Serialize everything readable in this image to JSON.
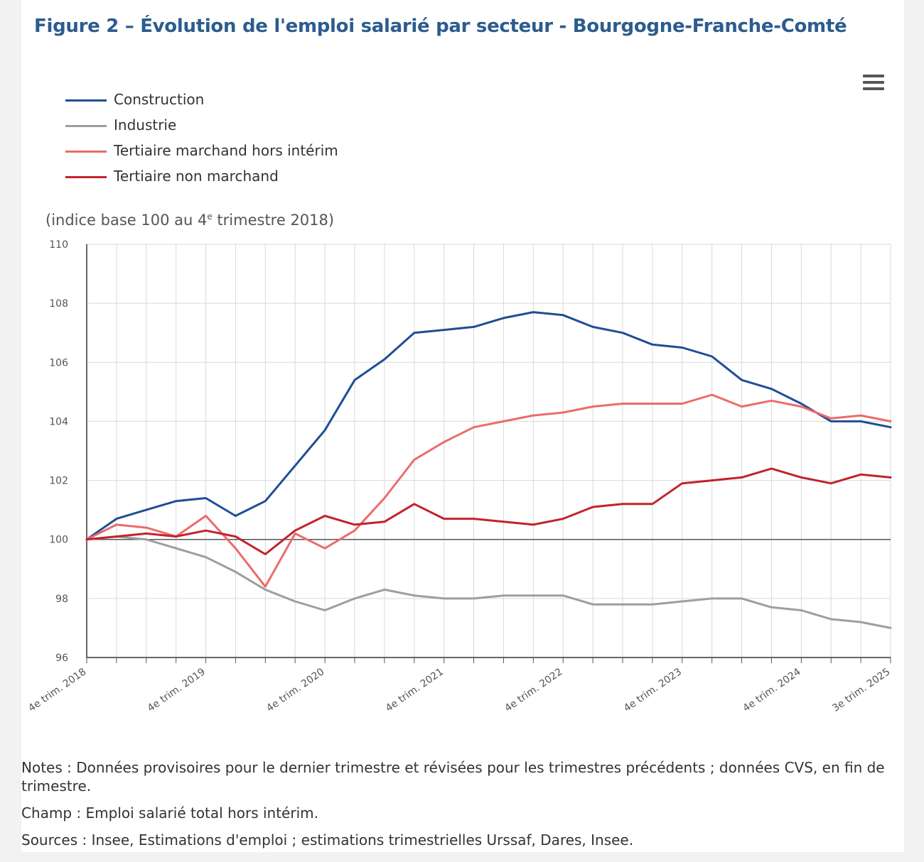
{
  "title": "Figure 2 – Évolution de l'emploi salarié par secteur - Bourgogne-Franche-Comté",
  "menu_icon": "hamburger-menu-icon",
  "unit_note": {
    "prefix": "(indice base 100 au 4",
    "sup": "e",
    "suffix": " trimestre 2018)"
  },
  "colors": {
    "title": "#2c5c8e",
    "construction": "#1f4e96",
    "industrie": "#9e9e9e",
    "tertiaire_marchand": "#ec6b6b",
    "tertiaire_non_marchand": "#c1232e"
  },
  "chart_data": {
    "type": "line",
    "title": "Figure 2 – Évolution de l'emploi salarié par secteur - Bourgogne-Franche-Comté",
    "ylabel": "(indice base 100 au 4e trimestre 2018)",
    "xlabel": "",
    "ylim": [
      96,
      110
    ],
    "y_ticks": [
      96,
      98,
      100,
      102,
      104,
      106,
      108,
      110
    ],
    "grid": true,
    "legend_position": "top-left",
    "x_count": 28,
    "x_tick_labels": [
      {
        "index": 0,
        "text": "4e trim. 2018"
      },
      {
        "index": 4,
        "text": "4e trim. 2019"
      },
      {
        "index": 8,
        "text": "4e trim. 2020"
      },
      {
        "index": 12,
        "text": "4e trim. 2021"
      },
      {
        "index": 16,
        "text": "4e trim. 2022"
      },
      {
        "index": 20,
        "text": "4e trim. 2023"
      },
      {
        "index": 24,
        "text": "4e trim. 2024"
      },
      {
        "index": 27,
        "text": "3e trim. 2025"
      }
    ],
    "reference_line": 100,
    "series": [
      {
        "name": "Construction",
        "color": "#1f4e96",
        "values": [
          100,
          100.7,
          101.0,
          101.3,
          101.4,
          100.8,
          101.3,
          102.5,
          103.7,
          105.4,
          106.1,
          107.0,
          107.1,
          107.2,
          107.5,
          107.7,
          107.6,
          107.2,
          107.0,
          106.6,
          106.5,
          106.2,
          105.4,
          105.1,
          104.6,
          104.0,
          104.0,
          103.8
        ]
      },
      {
        "name": "Industrie",
        "color": "#9e9e9e",
        "values": [
          100,
          100.1,
          100.0,
          99.7,
          99.4,
          98.9,
          98.3,
          97.9,
          97.6,
          98.0,
          98.3,
          98.1,
          98.0,
          98.0,
          98.1,
          98.1,
          98.1,
          97.8,
          97.8,
          97.8,
          97.9,
          98.0,
          98.0,
          97.7,
          97.6,
          97.3,
          97.2,
          97.0
        ]
      },
      {
        "name": "Tertiaire marchand hors intérim",
        "color": "#ec6b6b",
        "values": [
          100,
          100.5,
          100.4,
          100.1,
          100.8,
          99.7,
          98.4,
          100.2,
          99.7,
          100.3,
          101.4,
          102.7,
          103.3,
          103.8,
          104.0,
          104.2,
          104.3,
          104.5,
          104.6,
          104.6,
          104.6,
          104.9,
          104.5,
          104.7,
          104.5,
          104.1,
          104.2,
          104.0
        ]
      },
      {
        "name": "Tertiaire non marchand",
        "color": "#c1232e",
        "values": [
          100,
          100.1,
          100.2,
          100.1,
          100.3,
          100.1,
          99.5,
          100.3,
          100.8,
          100.5,
          100.6,
          101.2,
          100.7,
          100.7,
          100.6,
          100.5,
          100.7,
          101.1,
          101.2,
          101.2,
          101.9,
          102.0,
          102.1,
          102.4,
          102.1,
          101.9,
          102.2,
          102.1
        ]
      }
    ]
  },
  "notes": {
    "notes": "Notes : Données provisoires pour le dernier trimestre et révisées pour les trimestres précédents ; données CVS, en fin de trimestre.",
    "champ": "Champ : Emploi salarié total hors intérim.",
    "sources": "Sources : Insee, Estimations d'emploi ; estimations trimestrielles Urssaf, Dares, Insee."
  }
}
